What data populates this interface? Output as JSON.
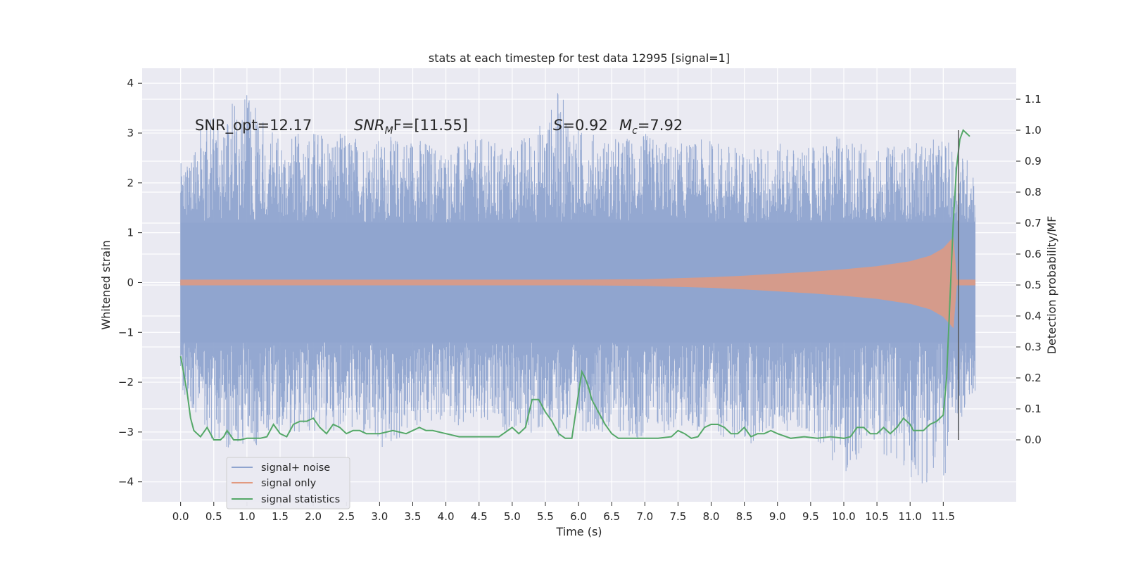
{
  "chart_data": {
    "type": "line",
    "title": "stats at each timestep for test data 12995 [signal=1]",
    "xlabel": "Time (s)",
    "ylabel_left": "Whitened strain",
    "ylabel_right": "Detection probability/MF",
    "xlim": [
      -0.58,
      12.6
    ],
    "ylim_left": [
      -4.4,
      4.3
    ],
    "ylim_right": [
      -0.2,
      1.2
    ],
    "x_ticks": [
      0.0,
      0.5,
      1.0,
      1.5,
      2.0,
      2.5,
      3.0,
      3.5,
      4.0,
      4.5,
      5.0,
      5.5,
      6.0,
      6.5,
      7.0,
      7.5,
      8.0,
      8.5,
      9.0,
      9.5,
      10.0,
      10.5,
      11.0,
      11.5
    ],
    "x_tick_labels": [
      "0.0",
      "0.5",
      "1.0",
      "1.5",
      "2.0",
      "2.5",
      "3.0",
      "3.5",
      "4.0",
      "4.5",
      "5.0",
      "5.5",
      "6.0",
      "6.5",
      "7.0",
      "7.5",
      "8.0",
      "8.5",
      "9.0",
      "9.5",
      "10.0",
      "10.5",
      "11.0",
      "11.5"
    ],
    "y_left_ticks": [
      -4,
      -3,
      -2,
      -1,
      0,
      1,
      2,
      3,
      4
    ],
    "y_left_tick_labels": [
      "−4",
      "−3",
      "−2",
      "−1",
      "0",
      "1",
      "2",
      "3",
      "4"
    ],
    "y_right_ticks": [
      0.0,
      0.1,
      0.2,
      0.3,
      0.4,
      0.5,
      0.6,
      0.7,
      0.8,
      0.9,
      1.0,
      1.1
    ],
    "y_right_tick_labels": [
      "0.0",
      "0.1",
      "0.2",
      "0.3",
      "0.4",
      "0.5",
      "0.6",
      "0.7",
      "0.8",
      "0.9",
      "1.0",
      "1.1"
    ],
    "grid": true,
    "legend_position": "lower-left",
    "annotations": {
      "snr_opt": "SNR_opt=12.17",
      "snr_mf_main": "SNR",
      "snr_mf_sub": "M",
      "snr_mf_rest": "F=[11.55]",
      "s_main": "S",
      "s_rest": "=0.92",
      "mc_main": "M",
      "mc_sub": "c",
      "mc_rest": "=7.92"
    },
    "vertical_marker": {
      "x": 11.73,
      "y_range_right": [
        0.0,
        1.0
      ],
      "color": "#555555"
    },
    "series": [
      {
        "name": "signal+ noise",
        "axis": "left",
        "color": "#8fa4cf",
        "x_range": [
          0.0,
          11.98
        ],
        "envelope": {
          "x": [
            0,
            0.5,
            1.0,
            1.5,
            2.0,
            2.5,
            3.0,
            3.5,
            4.0,
            4.5,
            5.0,
            5.5,
            5.7,
            6.0,
            6.5,
            7.0,
            7.5,
            8.0,
            8.5,
            9.0,
            9.5,
            10.0,
            10.5,
            11.0,
            11.5,
            11.98
          ],
          "max": [
            2.4,
            3.5,
            3.85,
            2.9,
            3.1,
            3.0,
            2.9,
            3.0,
            2.7,
            2.9,
            2.8,
            3.3,
            3.9,
            3.1,
            2.9,
            3.0,
            2.8,
            2.9,
            2.7,
            2.8,
            2.7,
            3.0,
            2.7,
            2.8,
            2.9,
            2.4
          ],
          "min": [
            -2.1,
            -3.3,
            -3.4,
            -3.0,
            -3.1,
            -2.9,
            -3.5,
            -3.0,
            -2.8,
            -3.0,
            -3.0,
            -3.1,
            -3.1,
            -3.0,
            -3.0,
            -3.2,
            -3.0,
            -3.0,
            -3.3,
            -3.0,
            -3.0,
            -3.9,
            -3.3,
            -4.05,
            -4.0,
            -2.2
          ]
        }
      },
      {
        "name": "signal only",
        "axis": "left",
        "color": "#e29a80",
        "amplitude": {
          "x": [
            0.0,
            6.0,
            7.0,
            7.5,
            8.0,
            8.5,
            9.0,
            9.5,
            10.0,
            10.5,
            11.0,
            11.3,
            11.5,
            11.65,
            11.7,
            11.98
          ],
          "value": [
            0.05,
            0.05,
            0.06,
            0.08,
            0.1,
            0.13,
            0.17,
            0.21,
            0.26,
            0.32,
            0.42,
            0.53,
            0.68,
            0.9,
            0.05,
            0.05
          ]
        }
      },
      {
        "name": "signal statistics",
        "axis": "right",
        "color": "#55a868",
        "x": [
          0.0,
          0.1,
          0.15,
          0.2,
          0.3,
          0.4,
          0.5,
          0.6,
          0.65,
          0.7,
          0.8,
          0.9,
          1.0,
          1.2,
          1.3,
          1.4,
          1.5,
          1.6,
          1.7,
          1.8,
          1.9,
          2.0,
          2.1,
          2.2,
          2.3,
          2.4,
          2.5,
          2.6,
          2.7,
          2.8,
          2.9,
          3.0,
          3.2,
          3.4,
          3.6,
          3.7,
          3.8,
          4.0,
          4.2,
          4.4,
          4.5,
          4.6,
          4.8,
          5.0,
          5.1,
          5.2,
          5.3,
          5.4,
          5.5,
          5.6,
          5.7,
          5.8,
          5.9,
          6.0,
          6.05,
          6.1,
          6.15,
          6.2,
          6.3,
          6.4,
          6.5,
          6.6,
          6.8,
          7.0,
          7.2,
          7.4,
          7.5,
          7.6,
          7.7,
          7.8,
          7.9,
          8.0,
          8.1,
          8.2,
          8.3,
          8.4,
          8.5,
          8.6,
          8.7,
          8.8,
          8.9,
          9.0,
          9.2,
          9.4,
          9.6,
          9.8,
          10.0,
          10.1,
          10.2,
          10.3,
          10.4,
          10.5,
          10.6,
          10.7,
          10.8,
          10.9,
          11.0,
          11.05,
          11.1,
          11.2,
          11.3,
          11.4,
          11.5,
          11.55,
          11.6,
          11.65,
          11.7,
          11.75,
          11.8,
          11.85,
          11.9
        ],
        "y": [
          0.27,
          0.15,
          0.07,
          0.03,
          0.01,
          0.04,
          0.0,
          0.0,
          0.01,
          0.03,
          0.0,
          0.0,
          0.005,
          0.005,
          0.01,
          0.05,
          0.02,
          0.01,
          0.05,
          0.06,
          0.06,
          0.07,
          0.04,
          0.02,
          0.05,
          0.04,
          0.02,
          0.03,
          0.03,
          0.02,
          0.02,
          0.02,
          0.03,
          0.02,
          0.04,
          0.03,
          0.03,
          0.02,
          0.01,
          0.01,
          0.01,
          0.01,
          0.01,
          0.04,
          0.02,
          0.04,
          0.13,
          0.13,
          0.09,
          0.06,
          0.02,
          0.005,
          0.005,
          0.15,
          0.22,
          0.2,
          0.17,
          0.13,
          0.09,
          0.05,
          0.02,
          0.005,
          0.005,
          0.005,
          0.005,
          0.01,
          0.03,
          0.02,
          0.005,
          0.01,
          0.04,
          0.05,
          0.05,
          0.04,
          0.02,
          0.02,
          0.04,
          0.01,
          0.02,
          0.02,
          0.03,
          0.02,
          0.005,
          0.01,
          0.005,
          0.01,
          0.005,
          0.01,
          0.04,
          0.04,
          0.02,
          0.02,
          0.04,
          0.02,
          0.04,
          0.07,
          0.05,
          0.03,
          0.03,
          0.03,
          0.05,
          0.06,
          0.08,
          0.2,
          0.45,
          0.7,
          0.88,
          0.97,
          1.0,
          0.99,
          0.98
        ]
      }
    ]
  }
}
